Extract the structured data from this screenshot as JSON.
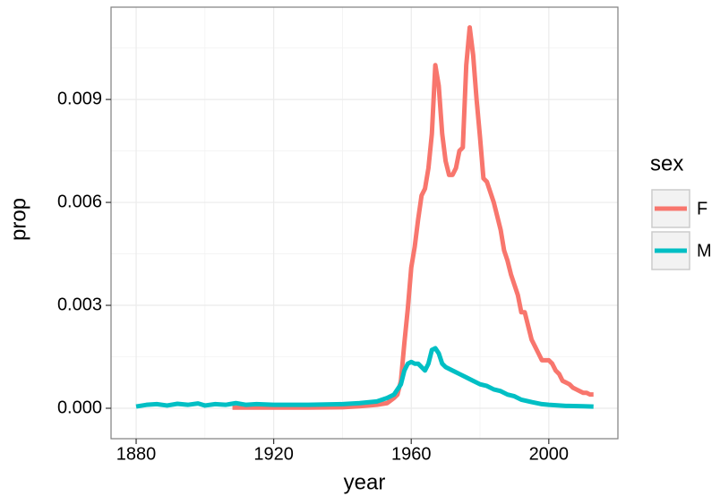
{
  "chart_data": {
    "type": "line",
    "x_label": "year",
    "y_label": "prop",
    "legend_title": "sex",
    "legend_position": "right",
    "grid": true,
    "xlim": [
      1872.7,
      2020.1
    ],
    "ylim": [
      -0.000887,
      0.01169
    ],
    "xticks": [
      1880,
      1920,
      1960,
      2000
    ],
    "yticks": [
      {
        "value": 0,
        "label": "0.000"
      },
      {
        "value": 0.003,
        "label": "0.003"
      },
      {
        "value": 0.006,
        "label": "0.006"
      },
      {
        "value": 0.009,
        "label": "0.009"
      }
    ],
    "xminorticks": [
      1900,
      1940,
      1980
    ],
    "yminorticks": [
      0.0015,
      0.0045,
      0.0075,
      0.0105
    ],
    "series": [
      {
        "name": "F",
        "color": "#F8766D",
        "x": [
          1908,
          1915,
          1920,
          1930,
          1940,
          1945,
          1950,
          1953,
          1955,
          1956,
          1957,
          1958,
          1959,
          1960,
          1961,
          1962,
          1963,
          1964,
          1965,
          1966,
          1967,
          1968,
          1969,
          1970,
          1971,
          1972,
          1973,
          1974,
          1975,
          1976,
          1977,
          1978,
          1979,
          1980,
          1981,
          1982,
          1983,
          1984,
          1985,
          1986,
          1987,
          1988,
          1989,
          1990,
          1991,
          1992,
          1993,
          1994,
          1995,
          1996,
          1997,
          1998,
          1999,
          2000,
          2001,
          2002,
          2003,
          2004,
          2005,
          2006,
          2007,
          2008,
          2009,
          2010,
          2011,
          2012,
          2013
        ],
        "values": [
          2e-05,
          2e-05,
          2e-05,
          2e-05,
          3e-05,
          6e-05,
          0.0001,
          0.00015,
          0.0003,
          0.0004,
          0.0008,
          0.0019,
          0.0029,
          0.0041,
          0.0047,
          0.0055,
          0.0062,
          0.0064,
          0.007,
          0.008,
          0.01,
          0.0094,
          0.008,
          0.0072,
          0.0068,
          0.0068,
          0.007,
          0.0075,
          0.0076,
          0.01,
          0.0111,
          0.0103,
          0.009,
          0.0079,
          0.0067,
          0.0066,
          0.0063,
          0.006,
          0.0056,
          0.0052,
          0.0046,
          0.0043,
          0.0039,
          0.0036,
          0.0033,
          0.0028,
          0.0028,
          0.0024,
          0.002,
          0.0018,
          0.0016,
          0.0014,
          0.0014,
          0.0014,
          0.0013,
          0.0011,
          0.001,
          0.0008,
          0.00075,
          0.0007,
          0.0006,
          0.00055,
          0.0005,
          0.00045,
          0.00045,
          0.0004,
          0.0004
        ]
      },
      {
        "name": "M",
        "color": "#00BFC4",
        "x": [
          1880,
          1883,
          1886,
          1889,
          1892,
          1895,
          1898,
          1900,
          1903,
          1906,
          1909,
          1912,
          1915,
          1920,
          1925,
          1930,
          1935,
          1940,
          1945,
          1950,
          1953,
          1955,
          1957,
          1958,
          1959,
          1960,
          1961,
          1962,
          1963,
          1964,
          1965,
          1966,
          1967,
          1968,
          1969,
          1970,
          1972,
          1974,
          1976,
          1978,
          1980,
          1982,
          1984,
          1986,
          1988,
          1990,
          1992,
          1995,
          1998,
          2000,
          2005,
          2010,
          2013
        ],
        "values": [
          5e-05,
          0.0001,
          0.00012,
          8e-05,
          0.00013,
          0.0001,
          0.00014,
          8e-05,
          0.00012,
          0.0001,
          0.00015,
          0.0001,
          0.00012,
          0.0001,
          0.0001,
          0.0001,
          0.00011,
          0.00012,
          0.00015,
          0.0002,
          0.0003,
          0.0004,
          0.0007,
          0.0011,
          0.0013,
          0.00135,
          0.0013,
          0.0013,
          0.0012,
          0.0011,
          0.0013,
          0.0017,
          0.00175,
          0.0016,
          0.0013,
          0.0012,
          0.0011,
          0.001,
          0.0009,
          0.0008,
          0.0007,
          0.00065,
          0.00055,
          0.0005,
          0.0004,
          0.00035,
          0.00025,
          0.00018,
          0.00012,
          0.0001,
          7e-05,
          6e-05,
          5e-05
        ]
      }
    ]
  }
}
